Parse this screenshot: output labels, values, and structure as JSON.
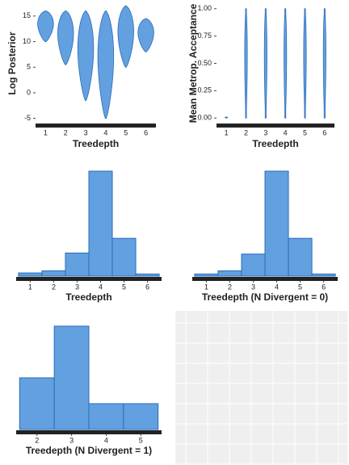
{
  "chart_data": [
    {
      "type": "violin",
      "x_label": "Treedepth",
      "y_label": "Log Posterior",
      "categories": [
        "1",
        "2",
        "3",
        "4",
        "5",
        "6"
      ],
      "low": [
        10,
        5.5,
        -1.5,
        -5,
        5,
        8
      ],
      "high": [
        16,
        16,
        16,
        16,
        17,
        14.5
      ],
      "color": "#62a0e0",
      "ylim": [
        -6,
        17.5
      ],
      "yticks": [
        -5,
        0,
        5,
        10,
        15
      ]
    },
    {
      "type": "violin",
      "x_label": "Treedepth",
      "y_label": "Mean Metrop. Acceptance",
      "categories": [
        "1",
        "2",
        "3",
        "4",
        "5",
        "6"
      ],
      "low": [
        0,
        0,
        0,
        0,
        0,
        0
      ],
      "high": [
        0.01,
        1,
        1,
        1,
        1,
        1
      ],
      "color": "#62a0e0",
      "ylim": [
        -0.05,
        1.05
      ],
      "yticks": [
        {
          "value": 0,
          "label": "0.00"
        },
        {
          "value": 0.25,
          "label": "0.25"
        },
        {
          "value": 0.5,
          "label": "0.50"
        },
        {
          "value": 0.75,
          "label": "0.75"
        },
        {
          "value": 1,
          "label": "1.00"
        }
      ]
    },
    {
      "type": "histogram",
      "x_label": "Treedepth",
      "bins": [
        0.5,
        1.5,
        2.5,
        3.5,
        4.5,
        5.5,
        6.5
      ],
      "values": [
        3,
        5,
        22,
        100,
        36,
        2
      ],
      "color": "#62a0e0",
      "xlim": [
        0.4,
        6.6
      ],
      "xticks": [
        1,
        2,
        3,
        4,
        5,
        6
      ],
      "ylim": [
        0,
        100
      ]
    },
    {
      "type": "histogram",
      "x_label": "Treedepth (N Divergent = 0)",
      "bins": [
        0.5,
        1.5,
        2.5,
        3.5,
        4.5,
        5.5,
        6.5
      ],
      "values": [
        2,
        5,
        21,
        100,
        36,
        2
      ],
      "color": "#62a0e0",
      "xlim": [
        0.4,
        6.6
      ],
      "xticks": [
        1,
        2,
        3,
        4,
        5,
        6
      ],
      "ylim": [
        0,
        100
      ]
    },
    {
      "type": "histogram",
      "x_label": "Treedepth (N Divergent = 1)",
      "bins": [
        1.5,
        2.5,
        3.5,
        4.5,
        5.5
      ],
      "values": [
        50,
        100,
        25,
        25
      ],
      "color": "#62a0e0",
      "xlim": [
        1.4,
        5.6
      ],
      "xticks": [
        2,
        3,
        4,
        5
      ],
      "ylim": [
        0,
        100
      ]
    }
  ]
}
